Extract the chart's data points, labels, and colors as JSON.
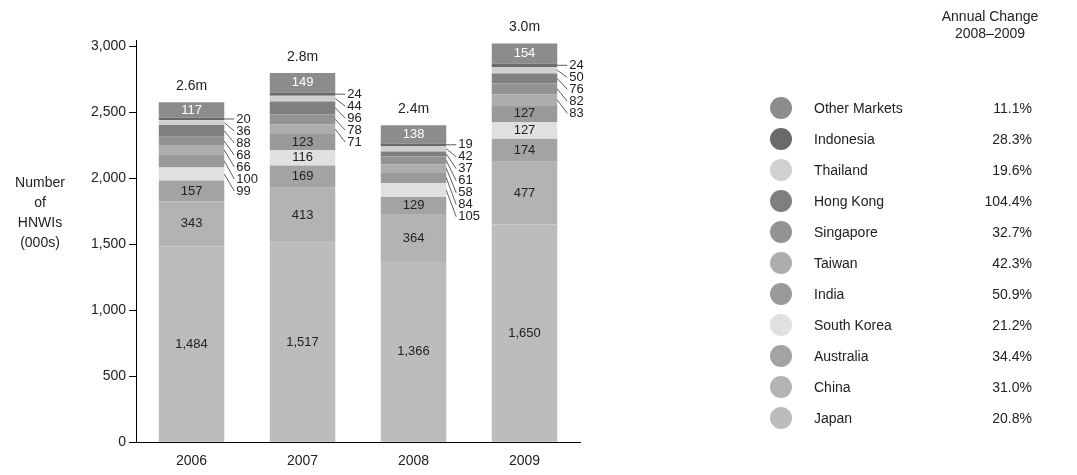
{
  "chart_data": {
    "type": "bar",
    "stacked": true,
    "ylabel": "Number of HNWIs (000s)",
    "legend_title": "Annual Change 2008–2009",
    "legend": "right",
    "grid": false,
    "data_labels": true,
    "categories": [
      "2006",
      "2007",
      "2008",
      "2009"
    ],
    "ylim": [
      0,
      3050
    ],
    "yticks": [
      0,
      500,
      {
        "value": 1000,
        "label": "1,000"
      },
      {
        "value": 1500,
        "label": "1,500"
      },
      {
        "value": 2000,
        "label": "2,000"
      },
      {
        "value": 2500,
        "label": "2,500"
      },
      {
        "value": 3000,
        "label": "3,000"
      }
    ],
    "totals": [
      "2.6m",
      "2.8m",
      "2.4m",
      "3.0m"
    ],
    "series": [
      {
        "name": "Japan",
        "color": "#bcbcbc",
        "values": [
          1484,
          1517,
          1366,
          1650
        ],
        "value_labels": [
          "1,484",
          "1,517",
          "1,366",
          "1,650"
        ]
      },
      {
        "name": "China",
        "color": "#b3b3b3",
        "values": [
          343,
          413,
          364,
          477
        ]
      },
      {
        "name": "Australia",
        "color": "#a3a3a3",
        "values": [
          157,
          169,
          129,
          174
        ]
      },
      {
        "name": "South Korea",
        "color": "#e0e0e0",
        "values": [
          99,
          116,
          105,
          127
        ]
      },
      {
        "name": "India",
        "color": "#9a9a9a",
        "values": [
          100,
          123,
          84,
          127
        ]
      },
      {
        "name": "Taiwan",
        "color": "#adadad",
        "values": [
          66,
          71,
          58,
          83
        ]
      },
      {
        "name": "Singapore",
        "color": "#939393",
        "values": [
          68,
          78,
          61,
          82
        ]
      },
      {
        "name": "Hong Kong",
        "color": "#7f7f7f",
        "values": [
          88,
          96,
          37,
          76
        ]
      },
      {
        "name": "Thailand",
        "color": "#d0d0d0",
        "values": [
          36,
          44,
          42,
          50
        ]
      },
      {
        "name": "Indonesia",
        "color": "#6a6a6a",
        "values": [
          20,
          24,
          19,
          24
        ]
      },
      {
        "name": "Other Markets",
        "color": "#8c8c8c",
        "values": [
          117,
          149,
          138,
          154
        ]
      }
    ],
    "annotations": [
      "20.8%",
      "31.0%",
      "34.4%",
      "21.2%",
      "50.9%",
      "42.3%",
      "32.7%",
      "104.4%",
      "19.6%",
      "28.3%",
      "11.1%"
    ]
  }
}
